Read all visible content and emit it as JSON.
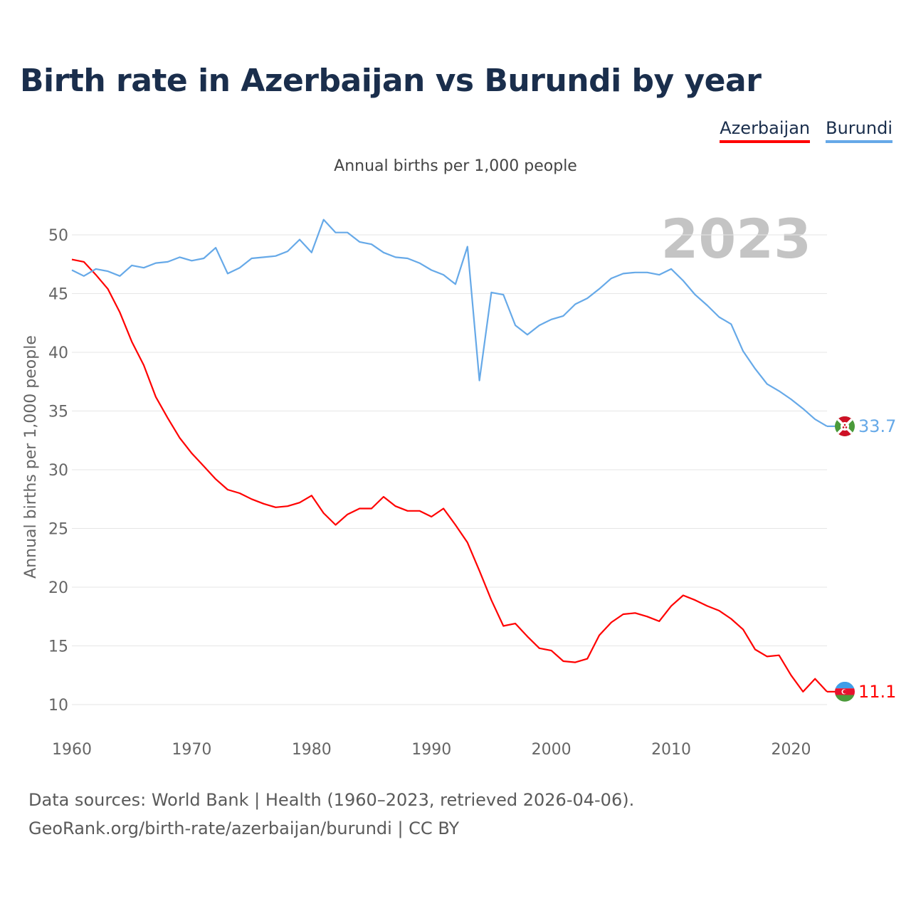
{
  "title": "Birth rate in Azerbaijan vs Burundi by year",
  "legend": {
    "azerbaijan": "Azerbaijan",
    "burundi": "Burundi"
  },
  "colors": {
    "azerbaijan": "#ff0000",
    "burundi": "#66a9e8",
    "title": "#1a2e4c"
  },
  "footer": {
    "line1": "Data sources: World Bank | Health (1960–2023, retrieved 2026-04-06).",
    "line2": "GeoRank.org/birth-rate/azerbaijan/burundi | CC BY"
  },
  "chart_data": {
    "type": "line",
    "title": "Birth rate in Azerbaijan vs Burundi by year",
    "subtitle": "Annual births per 1,000 people",
    "ylabel": "Annual births per 1,000 people",
    "xlabel": "",
    "year_label": "2023",
    "xlim": [
      1960,
      2023
    ],
    "ylim": [
      8,
      53
    ],
    "yticks": [
      10,
      15,
      20,
      25,
      30,
      35,
      40,
      45,
      50
    ],
    "xticks": [
      1960,
      1970,
      1980,
      1990,
      2000,
      2010,
      2020
    ],
    "grid": true,
    "x": [
      1960,
      1961,
      1962,
      1963,
      1964,
      1965,
      1966,
      1967,
      1968,
      1969,
      1970,
      1971,
      1972,
      1973,
      1974,
      1975,
      1976,
      1977,
      1978,
      1979,
      1980,
      1981,
      1982,
      1983,
      1984,
      1985,
      1986,
      1987,
      1988,
      1989,
      1990,
      1991,
      1992,
      1993,
      1994,
      1995,
      1996,
      1997,
      1998,
      1999,
      2000,
      2001,
      2002,
      2003,
      2004,
      2005,
      2006,
      2007,
      2008,
      2009,
      2010,
      2011,
      2012,
      2013,
      2014,
      2015,
      2016,
      2017,
      2018,
      2019,
      2020,
      2021,
      2022,
      2023
    ],
    "series": [
      {
        "name": "Azerbaijan",
        "end_label": "11.1",
        "values": [
          47.9,
          47.7,
          46.6,
          45.4,
          43.4,
          40.9,
          38.9,
          36.2,
          34.4,
          32.7,
          31.4,
          30.3,
          29.2,
          28.3,
          28.0,
          27.5,
          27.1,
          26.8,
          26.9,
          27.2,
          27.8,
          26.3,
          25.3,
          26.2,
          26.7,
          26.7,
          27.7,
          26.9,
          26.5,
          26.5,
          26.0,
          26.7,
          25.3,
          23.8,
          21.4,
          18.9,
          16.7,
          16.9,
          15.8,
          14.8,
          14.6,
          13.7,
          13.6,
          13.9,
          15.9,
          17.0,
          17.7,
          17.8,
          17.5,
          17.1,
          18.4,
          19.3,
          18.9,
          18.4,
          18.0,
          17.3,
          16.4,
          14.7,
          14.1,
          14.2,
          12.5,
          11.1,
          12.2,
          11.1
        ]
      },
      {
        "name": "Burundi",
        "end_label": "33.7",
        "values": [
          47.0,
          46.5,
          47.1,
          46.9,
          46.5,
          47.4,
          47.2,
          47.6,
          47.7,
          48.1,
          47.8,
          48.0,
          48.9,
          46.7,
          47.2,
          48.0,
          48.1,
          48.2,
          48.6,
          49.6,
          48.5,
          51.3,
          50.2,
          50.2,
          49.4,
          49.2,
          48.5,
          48.1,
          48.0,
          47.6,
          47.0,
          46.6,
          45.8,
          49.0,
          37.6,
          45.1,
          44.9,
          42.3,
          41.5,
          42.3,
          42.8,
          43.1,
          44.1,
          44.6,
          45.4,
          46.3,
          46.7,
          46.8,
          46.8,
          46.6,
          47.1,
          46.1,
          44.9,
          44.0,
          43.0,
          42.4,
          40.1,
          38.6,
          37.3,
          36.7,
          36.0,
          35.2,
          34.3,
          33.7
        ]
      }
    ]
  }
}
